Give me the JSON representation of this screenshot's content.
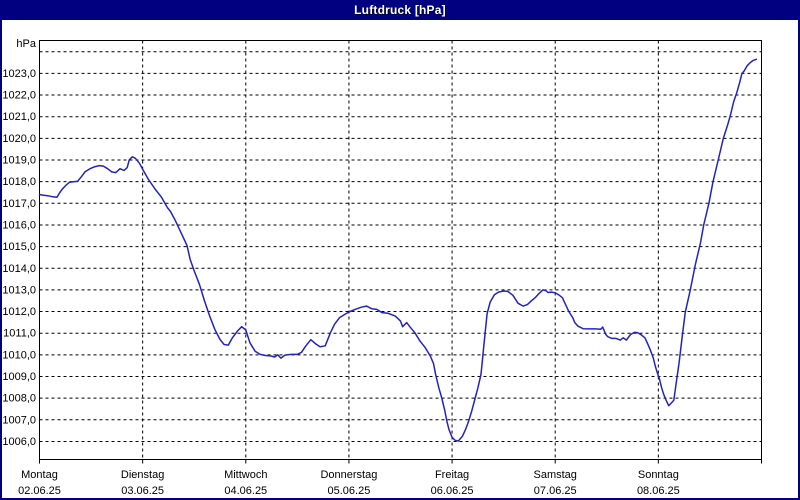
{
  "window": {
    "title": "Luftdruck [hPa]"
  },
  "colors": {
    "titlebar_bg": "#000080",
    "titlebar_text": "#ffffff",
    "window_border": "#000080",
    "plot_bg": "#ffffff",
    "grid": "#000000",
    "line": "#2323c0",
    "label_text": "#000000"
  },
  "chart_data": {
    "type": "line",
    "title": "Luftdruck [hPa]",
    "ylabel": "hPa",
    "grid": "dashed",
    "legend": "none",
    "ylim": [
      1005.2,
      1024.5
    ],
    "y_ticks": [
      {
        "value": 1023,
        "label": "1023,0"
      },
      {
        "value": 1022,
        "label": "1022,0"
      },
      {
        "value": 1021,
        "label": "1021,0"
      },
      {
        "value": 1020,
        "label": "1020,0"
      },
      {
        "value": 1019,
        "label": "1019,0"
      },
      {
        "value": 1018,
        "label": "1018,0"
      },
      {
        "value": 1017,
        "label": "1017,0"
      },
      {
        "value": 1016,
        "label": "1016,0"
      },
      {
        "value": 1015,
        "label": "1015,0"
      },
      {
        "value": 1014,
        "label": "1014,0"
      },
      {
        "value": 1013,
        "label": "1013,0"
      },
      {
        "value": 1012,
        "label": "1012,0"
      },
      {
        "value": 1011,
        "label": "1011,0"
      },
      {
        "value": 1010,
        "label": "1010,0"
      },
      {
        "value": 1009,
        "label": "1009,0"
      },
      {
        "value": 1008,
        "label": "1008,0"
      },
      {
        "value": 1007,
        "label": "1007,0"
      },
      {
        "value": 1006,
        "label": "1006,0"
      }
    ],
    "y_extra_gridlines": [
      1024
    ],
    "x_axis": {
      "span_days": 7,
      "days": [
        {
          "weekday": "Montag",
          "date": "02.06.25"
        },
        {
          "weekday": "Dienstag",
          "date": "03.06.25"
        },
        {
          "weekday": "Mittwoch",
          "date": "04.06.25"
        },
        {
          "weekday": "Donnerstag",
          "date": "05.06.25"
        },
        {
          "weekday": "Freitag",
          "date": "06.06.25"
        },
        {
          "weekday": "Samstag",
          "date": "07.06.25"
        },
        {
          "weekday": "Sonntag",
          "date": "08.06.25"
        }
      ]
    },
    "series": [
      {
        "name": "Luftdruck",
        "unit": "hPa",
        "color": "#2323c0",
        "points": [
          [
            0.0,
            1017.4
          ],
          [
            0.04,
            1017.37
          ],
          [
            0.08,
            1017.35
          ],
          [
            0.13,
            1017.3
          ],
          [
            0.17,
            1017.28
          ],
          [
            0.19,
            1017.45
          ],
          [
            0.22,
            1017.65
          ],
          [
            0.26,
            1017.85
          ],
          [
            0.29,
            1017.97
          ],
          [
            0.33,
            1018.0
          ],
          [
            0.37,
            1018.02
          ],
          [
            0.41,
            1018.25
          ],
          [
            0.44,
            1018.45
          ],
          [
            0.49,
            1018.6
          ],
          [
            0.53,
            1018.68
          ],
          [
            0.58,
            1018.74
          ],
          [
            0.62,
            1018.72
          ],
          [
            0.66,
            1018.6
          ],
          [
            0.7,
            1018.45
          ],
          [
            0.74,
            1018.42
          ],
          [
            0.78,
            1018.6
          ],
          [
            0.82,
            1018.52
          ],
          [
            0.85,
            1018.65
          ],
          [
            0.87,
            1019.0
          ],
          [
            0.9,
            1019.15
          ],
          [
            0.93,
            1019.08
          ],
          [
            0.97,
            1018.85
          ],
          [
            1.0,
            1018.58
          ],
          [
            1.05,
            1018.15
          ],
          [
            1.12,
            1017.66
          ],
          [
            1.18,
            1017.3
          ],
          [
            1.24,
            1016.8
          ],
          [
            1.27,
            1016.62
          ],
          [
            1.31,
            1016.27
          ],
          [
            1.38,
            1015.57
          ],
          [
            1.43,
            1015.05
          ],
          [
            1.46,
            1014.42
          ],
          [
            1.5,
            1013.88
          ],
          [
            1.55,
            1013.26
          ],
          [
            1.6,
            1012.49
          ],
          [
            1.65,
            1011.79
          ],
          [
            1.7,
            1011.18
          ],
          [
            1.75,
            1010.71
          ],
          [
            1.79,
            1010.48
          ],
          [
            1.83,
            1010.45
          ],
          [
            1.87,
            1010.79
          ],
          [
            1.92,
            1011.1
          ],
          [
            1.96,
            1011.3
          ],
          [
            2.0,
            1011.15
          ],
          [
            2.04,
            1010.56
          ],
          [
            2.09,
            1010.17
          ],
          [
            2.14,
            1010.02
          ],
          [
            2.19,
            1009.97
          ],
          [
            2.24,
            1009.95
          ],
          [
            2.28,
            1009.9
          ],
          [
            2.31,
            1010.0
          ],
          [
            2.34,
            1009.85
          ],
          [
            2.38,
            1009.99
          ],
          [
            2.44,
            1010.02
          ],
          [
            2.5,
            1010.02
          ],
          [
            2.54,
            1010.12
          ],
          [
            2.58,
            1010.4
          ],
          [
            2.63,
            1010.7
          ],
          [
            2.68,
            1010.5
          ],
          [
            2.72,
            1010.37
          ],
          [
            2.77,
            1010.42
          ],
          [
            2.82,
            1011.02
          ],
          [
            2.86,
            1011.41
          ],
          [
            2.91,
            1011.72
          ],
          [
            2.96,
            1011.87
          ],
          [
            3.0,
            1011.98
          ],
          [
            3.06,
            1012.1
          ],
          [
            3.12,
            1012.2
          ],
          [
            3.17,
            1012.25
          ],
          [
            3.22,
            1012.13
          ],
          [
            3.27,
            1012.1
          ],
          [
            3.32,
            1011.95
          ],
          [
            3.38,
            1011.92
          ],
          [
            3.45,
            1011.79
          ],
          [
            3.5,
            1011.56
          ],
          [
            3.52,
            1011.3
          ],
          [
            3.56,
            1011.49
          ],
          [
            3.59,
            1011.3
          ],
          [
            3.64,
            1011.02
          ],
          [
            3.69,
            1010.63
          ],
          [
            3.74,
            1010.33
          ],
          [
            3.79,
            1009.94
          ],
          [
            3.82,
            1009.6
          ],
          [
            3.84,
            1009.1
          ],
          [
            3.87,
            1008.5
          ],
          [
            3.9,
            1008.0
          ],
          [
            3.93,
            1007.4
          ],
          [
            3.95,
            1006.93
          ],
          [
            3.97,
            1006.55
          ],
          [
            4.0,
            1006.19
          ],
          [
            4.03,
            1006.05
          ],
          [
            4.06,
            1006.02
          ],
          [
            4.1,
            1006.24
          ],
          [
            4.13,
            1006.55
          ],
          [
            4.16,
            1006.93
          ],
          [
            4.19,
            1007.4
          ],
          [
            4.22,
            1007.94
          ],
          [
            4.25,
            1008.48
          ],
          [
            4.28,
            1009.1
          ],
          [
            4.31,
            1010.5
          ],
          [
            4.34,
            1011.9
          ],
          [
            4.37,
            1012.44
          ],
          [
            4.41,
            1012.78
          ],
          [
            4.45,
            1012.9
          ],
          [
            4.5,
            1012.95
          ],
          [
            4.54,
            1012.93
          ],
          [
            4.59,
            1012.75
          ],
          [
            4.64,
            1012.38
          ],
          [
            4.69,
            1012.25
          ],
          [
            4.73,
            1012.32
          ],
          [
            4.77,
            1012.5
          ],
          [
            4.81,
            1012.66
          ],
          [
            4.84,
            1012.82
          ],
          [
            4.88,
            1013.0
          ],
          [
            4.91,
            1012.97
          ],
          [
            4.93,
            1012.88
          ],
          [
            4.96,
            1012.9
          ],
          [
            5.0,
            1012.87
          ],
          [
            5.04,
            1012.75
          ],
          [
            5.07,
            1012.64
          ],
          [
            5.1,
            1012.33
          ],
          [
            5.13,
            1012.02
          ],
          [
            5.17,
            1011.72
          ],
          [
            5.19,
            1011.49
          ],
          [
            5.22,
            1011.33
          ],
          [
            5.27,
            1011.21
          ],
          [
            5.33,
            1011.2
          ],
          [
            5.39,
            1011.2
          ],
          [
            5.44,
            1011.18
          ],
          [
            5.46,
            1011.28
          ],
          [
            5.49,
            1010.94
          ],
          [
            5.51,
            1010.84
          ],
          [
            5.55,
            1010.76
          ],
          [
            5.59,
            1010.76
          ],
          [
            5.63,
            1010.68
          ],
          [
            5.66,
            1010.79
          ],
          [
            5.69,
            1010.68
          ],
          [
            5.73,
            1010.94
          ],
          [
            5.77,
            1011.04
          ],
          [
            5.8,
            1011.02
          ],
          [
            5.83,
            1010.94
          ],
          [
            5.87,
            1010.79
          ],
          [
            5.9,
            1010.48
          ],
          [
            5.92,
            1010.25
          ],
          [
            5.95,
            1009.87
          ],
          [
            5.97,
            1009.48
          ],
          [
            5.99,
            1009.17
          ],
          [
            6.01,
            1008.9
          ],
          [
            6.03,
            1008.5
          ],
          [
            6.05,
            1008.2
          ],
          [
            6.07,
            1007.95
          ],
          [
            6.1,
            1007.65
          ],
          [
            6.13,
            1007.8
          ],
          [
            6.15,
            1007.9
          ],
          [
            6.17,
            1008.6
          ],
          [
            6.2,
            1009.6
          ],
          [
            6.23,
            1010.8
          ],
          [
            6.26,
            1011.95
          ],
          [
            6.31,
            1013.0
          ],
          [
            6.36,
            1014.2
          ],
          [
            6.41,
            1015.2
          ],
          [
            6.44,
            1016.0
          ],
          [
            6.49,
            1017.0
          ],
          [
            6.53,
            1018.0
          ],
          [
            6.58,
            1019.0
          ],
          [
            6.63,
            1020.0
          ],
          [
            6.67,
            1020.6
          ],
          [
            6.7,
            1021.1
          ],
          [
            6.73,
            1021.7
          ],
          [
            6.76,
            1022.1
          ],
          [
            6.79,
            1022.6
          ],
          [
            6.81,
            1023.0
          ],
          [
            6.83,
            1023.1
          ],
          [
            6.86,
            1023.35
          ],
          [
            6.89,
            1023.5
          ],
          [
            6.92,
            1023.6
          ],
          [
            6.95,
            1023.65
          ]
        ]
      }
    ]
  }
}
